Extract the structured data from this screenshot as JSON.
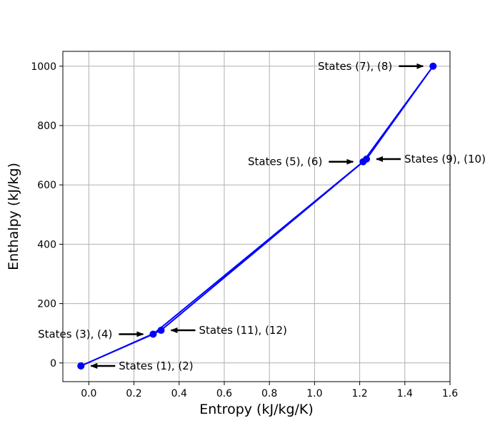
{
  "chart_data": {
    "type": "line",
    "xlabel": "Entropy (kJ/kg/K)",
    "ylabel": "Enthalpy (kJ/kg)",
    "xlim": [
      -0.115,
      1.6
    ],
    "ylim": [
      -63,
      1050
    ],
    "xticks": [
      0.0,
      0.2,
      0.4,
      0.6,
      0.8,
      1.0,
      1.2,
      1.4,
      1.6
    ],
    "xtick_labels": [
      "0.0",
      "0.2",
      "0.4",
      "0.6",
      "0.8",
      "1.0",
      "1.2",
      "1.4",
      "1.6"
    ],
    "yticks": [
      0,
      200,
      400,
      600,
      800,
      1000
    ],
    "ytick_labels": [
      "0",
      "200",
      "400",
      "600",
      "800",
      "1000"
    ],
    "grid": true,
    "line_color": "#0000ff",
    "arrow_color": "#000000",
    "series": [
      {
        "x": [
          -0.035,
          0.285,
          1.215,
          1.525,
          1.23,
          0.32,
          -0.035
        ],
        "y": [
          -10,
          97,
          678,
          1000,
          687,
          110,
          -10
        ]
      }
    ],
    "annotations": [
      {
        "text": "States (1), (2)",
        "x": -0.035,
        "y": -10,
        "side": "right"
      },
      {
        "text": "States (3), (4)",
        "x": 0.285,
        "y": 97,
        "side": "left"
      },
      {
        "text": "States (5), (6)",
        "x": 1.215,
        "y": 678,
        "side": "left"
      },
      {
        "text": "States (7), (8)",
        "x": 1.525,
        "y": 1000,
        "side": "left"
      },
      {
        "text": "States (9), (10)",
        "x": 1.23,
        "y": 687,
        "side": "right"
      },
      {
        "text": "States (11), (12)",
        "x": 0.32,
        "y": 110,
        "side": "right"
      }
    ]
  }
}
